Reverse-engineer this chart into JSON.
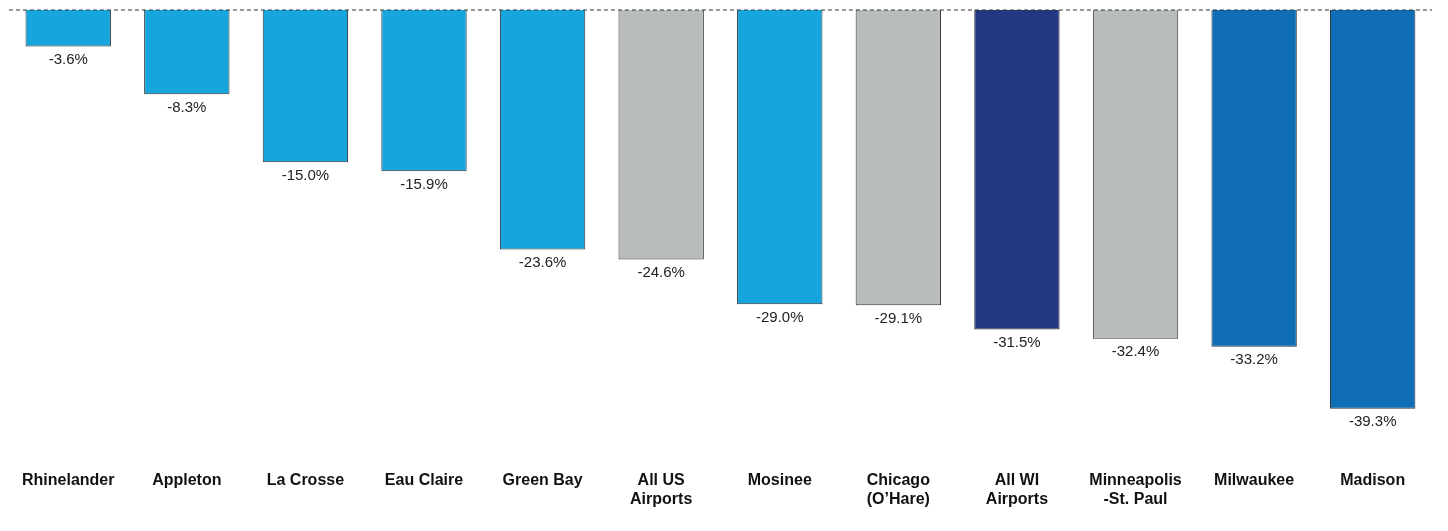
{
  "chart_data": {
    "type": "bar",
    "categories": [
      "Rhinelander",
      "Appleton",
      "La Crosse",
      "Eau Claire",
      "Green Bay",
      "All US Airports",
      "Mosinee",
      "Chicago (O’Hare)",
      "All WI Airports",
      "Minneapolis -St. Paul",
      "Milwaukee",
      "Madison"
    ],
    "values": [
      -3.6,
      -8.3,
      -15.0,
      -15.9,
      -23.6,
      -24.6,
      -29.0,
      -29.1,
      -31.5,
      -32.4,
      -33.2,
      -39.3
    ],
    "colors": [
      "#16a5dc",
      "#16a5dc",
      "#16a5dc",
      "#16a5dc",
      "#16a5dc",
      "#b8bcbd",
      "#16a5dc",
      "#b8bcbd",
      "#253882",
      "#b8bcbd",
      "#0f6eb5",
      "#0f6eb5"
    ],
    "value_labels": [
      "-3.6%",
      "-8.3%",
      "-15.0%",
      "-15.9%",
      "-23.6%",
      "-24.6%",
      "-29.0%",
      "-29.1%",
      "-31.5%",
      "-32.4%",
      "-33.2%",
      "-39.3%"
    ],
    "ref_lines": [
      {
        "axis": "y",
        "value": 0,
        "color": "#333333",
        "line_style": "dashed"
      }
    ],
    "legend": false,
    "grid": false
  }
}
